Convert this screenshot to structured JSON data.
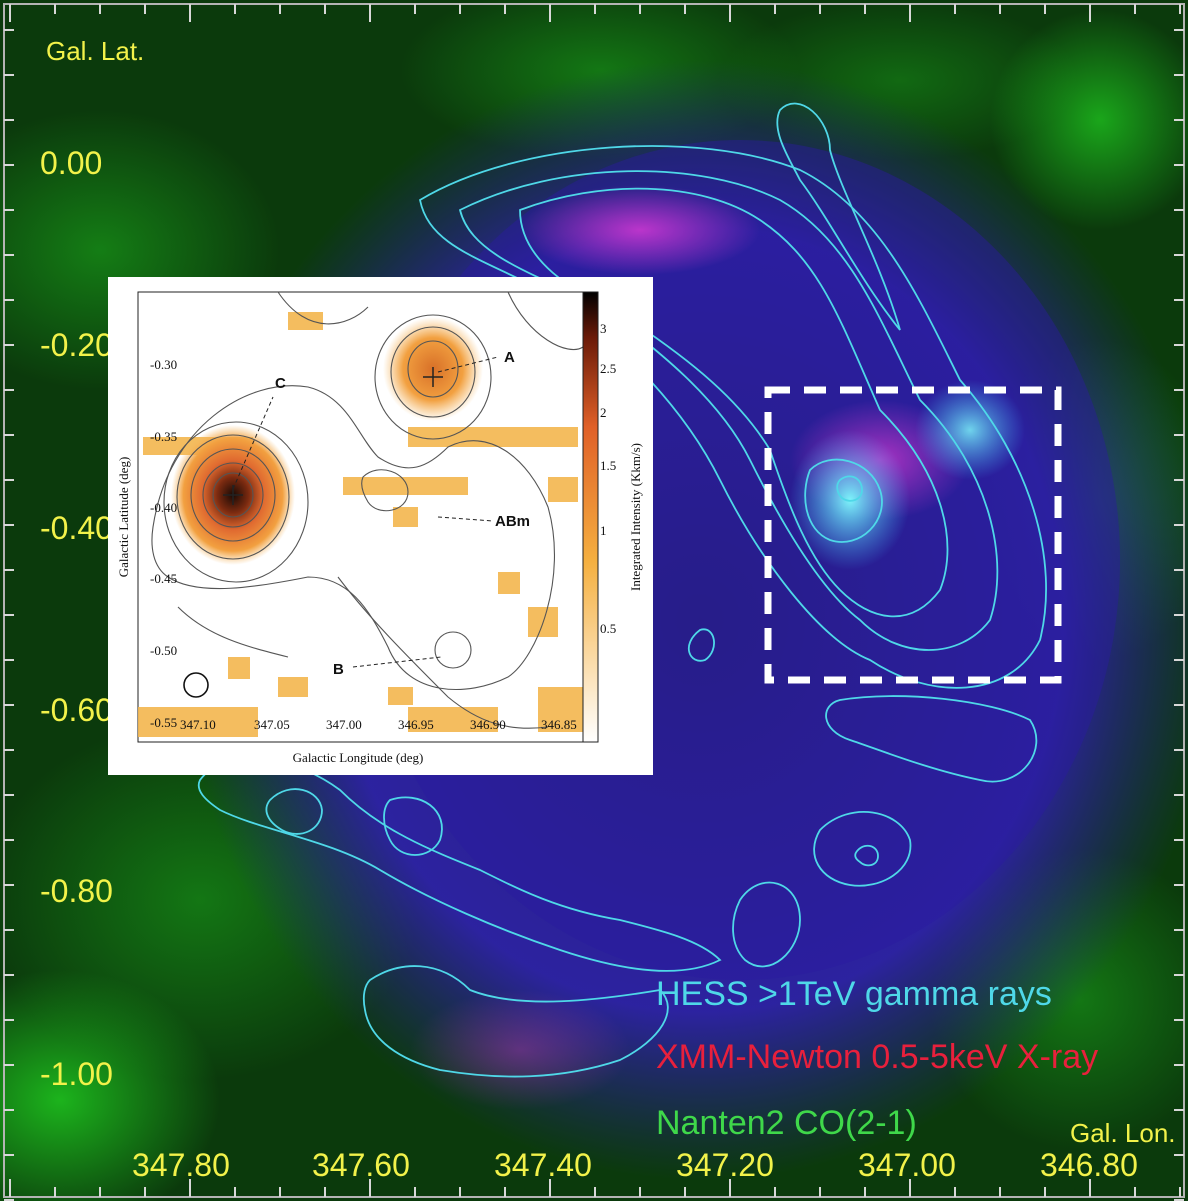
{
  "frame": {
    "lat_title": "Gal. Lat.",
    "lon_title": "Gal. Lon.",
    "lat_labels": [
      "0.00",
      "-0.20",
      "-0.40",
      "-0.60",
      "-0.80",
      "-1.00"
    ],
    "lon_labels": [
      "347.80",
      "347.60",
      "347.40",
      "347.20",
      "347.00",
      "346.80"
    ]
  },
  "legend": {
    "items": [
      {
        "text": "HESS >1TeV gamma rays",
        "color": "#4fd8e8"
      },
      {
        "text": "XMM-Newton 0.5-5keV X-ray",
        "color": "#e8203c"
      },
      {
        "text": "Nanten2 CO(2-1)",
        "color": "#3fd84a"
      }
    ]
  },
  "inset": {
    "xlabel": "Galactic Longitude (deg)",
    "ylabel": "Galactic Latitude (deg)",
    "cbar_label": "Integrated Intensity (Kkm/s)",
    "x_ticks": [
      "347.10",
      "347.05",
      "347.00",
      "346.95",
      "346.90",
      "346.85"
    ],
    "y_ticks": [
      "-0.30",
      "-0.35",
      "-0.40",
      "-0.45",
      "-0.50",
      "-0.55"
    ],
    "cbar_ticks": [
      "3",
      "2.5",
      "2",
      "1.5",
      "1",
      "0.5"
    ],
    "labels": {
      "a": "A",
      "b": "B",
      "c": "C",
      "abm": "ABm"
    }
  },
  "colors": {
    "frame_text": "#f2f24a",
    "contour": "#4fd8e8",
    "box": "#ffffff"
  }
}
